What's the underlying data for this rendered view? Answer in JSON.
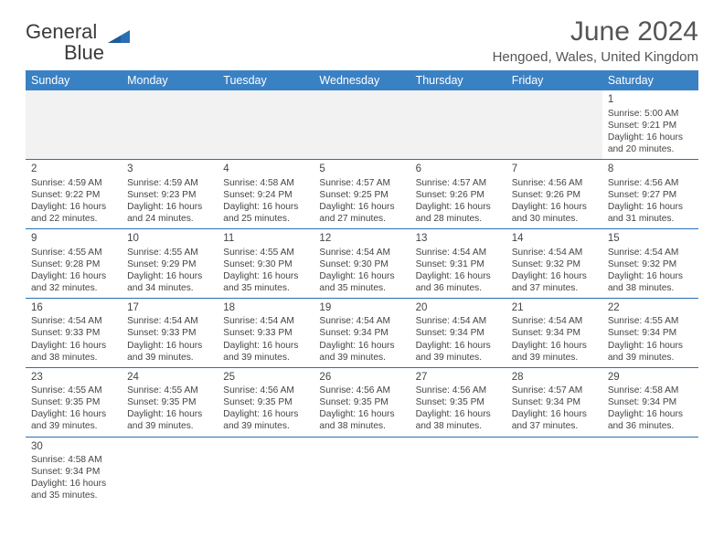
{
  "logo": {
    "text1": "General",
    "text2": "Blue"
  },
  "title": "June 2024",
  "location": "Hengoed, Wales, United Kingdom",
  "header_bg": "#3a81c4",
  "header_fg": "#ffffff",
  "border_color": "#2a6fb5",
  "blank_bg": "#f2f2f2",
  "days": [
    "Sunday",
    "Monday",
    "Tuesday",
    "Wednesday",
    "Thursday",
    "Friday",
    "Saturday"
  ],
  "weeks": [
    [
      null,
      null,
      null,
      null,
      null,
      null,
      {
        "n": "1",
        "sr": "5:00 AM",
        "ss": "9:21 PM",
        "dl": "16 hours and 20 minutes."
      }
    ],
    [
      {
        "n": "2",
        "sr": "4:59 AM",
        "ss": "9:22 PM",
        "dl": "16 hours and 22 minutes."
      },
      {
        "n": "3",
        "sr": "4:59 AM",
        "ss": "9:23 PM",
        "dl": "16 hours and 24 minutes."
      },
      {
        "n": "4",
        "sr": "4:58 AM",
        "ss": "9:24 PM",
        "dl": "16 hours and 25 minutes."
      },
      {
        "n": "5",
        "sr": "4:57 AM",
        "ss": "9:25 PM",
        "dl": "16 hours and 27 minutes."
      },
      {
        "n": "6",
        "sr": "4:57 AM",
        "ss": "9:26 PM",
        "dl": "16 hours and 28 minutes."
      },
      {
        "n": "7",
        "sr": "4:56 AM",
        "ss": "9:26 PM",
        "dl": "16 hours and 30 minutes."
      },
      {
        "n": "8",
        "sr": "4:56 AM",
        "ss": "9:27 PM",
        "dl": "16 hours and 31 minutes."
      }
    ],
    [
      {
        "n": "9",
        "sr": "4:55 AM",
        "ss": "9:28 PM",
        "dl": "16 hours and 32 minutes."
      },
      {
        "n": "10",
        "sr": "4:55 AM",
        "ss": "9:29 PM",
        "dl": "16 hours and 34 minutes."
      },
      {
        "n": "11",
        "sr": "4:55 AM",
        "ss": "9:30 PM",
        "dl": "16 hours and 35 minutes."
      },
      {
        "n": "12",
        "sr": "4:54 AM",
        "ss": "9:30 PM",
        "dl": "16 hours and 35 minutes."
      },
      {
        "n": "13",
        "sr": "4:54 AM",
        "ss": "9:31 PM",
        "dl": "16 hours and 36 minutes."
      },
      {
        "n": "14",
        "sr": "4:54 AM",
        "ss": "9:32 PM",
        "dl": "16 hours and 37 minutes."
      },
      {
        "n": "15",
        "sr": "4:54 AM",
        "ss": "9:32 PM",
        "dl": "16 hours and 38 minutes."
      }
    ],
    [
      {
        "n": "16",
        "sr": "4:54 AM",
        "ss": "9:33 PM",
        "dl": "16 hours and 38 minutes."
      },
      {
        "n": "17",
        "sr": "4:54 AM",
        "ss": "9:33 PM",
        "dl": "16 hours and 39 minutes."
      },
      {
        "n": "18",
        "sr": "4:54 AM",
        "ss": "9:33 PM",
        "dl": "16 hours and 39 minutes."
      },
      {
        "n": "19",
        "sr": "4:54 AM",
        "ss": "9:34 PM",
        "dl": "16 hours and 39 minutes."
      },
      {
        "n": "20",
        "sr": "4:54 AM",
        "ss": "9:34 PM",
        "dl": "16 hours and 39 minutes."
      },
      {
        "n": "21",
        "sr": "4:54 AM",
        "ss": "9:34 PM",
        "dl": "16 hours and 39 minutes."
      },
      {
        "n": "22",
        "sr": "4:55 AM",
        "ss": "9:34 PM",
        "dl": "16 hours and 39 minutes."
      }
    ],
    [
      {
        "n": "23",
        "sr": "4:55 AM",
        "ss": "9:35 PM",
        "dl": "16 hours and 39 minutes."
      },
      {
        "n": "24",
        "sr": "4:55 AM",
        "ss": "9:35 PM",
        "dl": "16 hours and 39 minutes."
      },
      {
        "n": "25",
        "sr": "4:56 AM",
        "ss": "9:35 PM",
        "dl": "16 hours and 39 minutes."
      },
      {
        "n": "26",
        "sr": "4:56 AM",
        "ss": "9:35 PM",
        "dl": "16 hours and 38 minutes."
      },
      {
        "n": "27",
        "sr": "4:56 AM",
        "ss": "9:35 PM",
        "dl": "16 hours and 38 minutes."
      },
      {
        "n": "28",
        "sr": "4:57 AM",
        "ss": "9:34 PM",
        "dl": "16 hours and 37 minutes."
      },
      {
        "n": "29",
        "sr": "4:58 AM",
        "ss": "9:34 PM",
        "dl": "16 hours and 36 minutes."
      }
    ],
    [
      {
        "n": "30",
        "sr": "4:58 AM",
        "ss": "9:34 PM",
        "dl": "16 hours and 35 minutes."
      },
      null,
      null,
      null,
      null,
      null,
      null
    ]
  ],
  "labels": {
    "sunrise": "Sunrise: ",
    "sunset": "Sunset: ",
    "daylight": "Daylight: "
  }
}
